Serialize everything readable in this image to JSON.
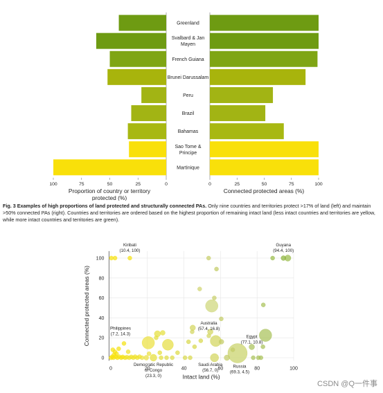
{
  "chart_data": [
    {
      "type": "bar",
      "orientation": "horizontal",
      "categories": [
        "Greenland",
        "Svalbard & Jan Mayen",
        "French Guiana",
        "Brunei Darussalam",
        "Peru",
        "Brazil",
        "Bahamas",
        "Sao Tome & Principe",
        "Martinique"
      ],
      "category_label_lines": [
        [
          "Greenland"
        ],
        [
          "Svalbard & Jan",
          "Mayen"
        ],
        [
          "French Guiana"
        ],
        [
          "Brunei Darussalam"
        ],
        [
          "Peru"
        ],
        [
          "Brazil"
        ],
        [
          "Bahamas"
        ],
        [
          "Sao Tome &",
          "Principe"
        ],
        [
          "Martinique"
        ]
      ],
      "colors": [
        "#6e9b12",
        "#6e9b12",
        "#7fa514",
        "#a8b40c",
        "#a2b414",
        "#a2b414",
        "#a8b812",
        "#f9e00a",
        "#f9e00a"
      ],
      "left": {
        "values": [
          42,
          62,
          50,
          52,
          22,
          31,
          34,
          33,
          100
        ],
        "xlabel_lines": [
          "Proportion of country or territory",
          "protected (%)"
        ],
        "xlim": [
          100,
          0
        ],
        "ticks": [
          "100",
          "75",
          "50",
          "25",
          "0"
        ],
        "tick_values": [
          100,
          75,
          50,
          25,
          0
        ]
      },
      "right": {
        "values": [
          100,
          100,
          99,
          88,
          58,
          51,
          68,
          100,
          100
        ],
        "xlabel": "Connected protected areas (%)",
        "xlim": [
          0,
          100
        ],
        "ticks": [
          "0",
          "25",
          "50",
          "75",
          "100"
        ],
        "tick_values": [
          0,
          25,
          50,
          75,
          100
        ]
      }
    },
    {
      "type": "scatter",
      "xlabel": "Intact land (%)",
      "ylabel": "Connected protected areas (%)",
      "xlim": [
        -1,
        100
      ],
      "ylim": [
        -3,
        107
      ],
      "xticks": [
        "0",
        "20",
        "40",
        "60",
        "80",
        "100"
      ],
      "xtick_values": [
        0,
        20,
        40,
        60,
        80,
        100
      ],
      "yticks": [
        "0",
        "20",
        "40",
        "60",
        "80",
        "100"
      ],
      "ytick_values": [
        0,
        20,
        40,
        60,
        80,
        100
      ],
      "grid": true,
      "points": [
        {
          "x": 10.4,
          "y": 100,
          "r": 3,
          "c": "#f4e214"
        },
        {
          "x": 0.3,
          "y": 100,
          "r": 3,
          "c": "#f7e210"
        },
        {
          "x": 2.3,
          "y": 100,
          "r": 3,
          "c": "#f7e210"
        },
        {
          "x": 94.4,
          "y": 100,
          "r": 3.5,
          "c": "#8ab33a"
        },
        {
          "x": 96.8,
          "y": 100,
          "r": 4.5,
          "c": "#9abd4a"
        },
        {
          "x": 88.5,
          "y": 100,
          "r": 3,
          "c": "#9abd4a"
        },
        {
          "x": 53.5,
          "y": 100,
          "r": 3,
          "c": "#c7cf6a"
        },
        {
          "x": 57.8,
          "y": 89,
          "r": 3,
          "c": "#c3cc66"
        },
        {
          "x": 48.6,
          "y": 69,
          "r": 3,
          "c": "#d0d470"
        },
        {
          "x": 56.6,
          "y": 60,
          "r": 3,
          "c": "#c7cf6a"
        },
        {
          "x": 55.2,
          "y": 52,
          "r": 9,
          "c": "#cfd77a"
        },
        {
          "x": 83.4,
          "y": 53,
          "r": 3,
          "c": "#a9c25a"
        },
        {
          "x": 60.4,
          "y": 39,
          "r": 3,
          "c": "#c3cc66"
        },
        {
          "x": 44.8,
          "y": 30,
          "r": 4,
          "c": "#d3d65e"
        },
        {
          "x": 44.5,
          "y": 26,
          "r": 3,
          "c": "#d3d65e"
        },
        {
          "x": 28.4,
          "y": 25,
          "r": 3.5,
          "c": "#e4df3c"
        },
        {
          "x": 25.5,
          "y": 24,
          "r": 4.5,
          "c": "#e4df3c"
        },
        {
          "x": 24.8,
          "y": 20,
          "r": 3,
          "c": "#e4df3c"
        },
        {
          "x": 57.4,
          "y": 16.8,
          "r": 8,
          "c": "#d3d65e"
        },
        {
          "x": 54.4,
          "y": 26,
          "r": 4,
          "c": "#d3d65e"
        },
        {
          "x": 53.6,
          "y": 22,
          "r": 3,
          "c": "#d3d65e"
        },
        {
          "x": 77.1,
          "y": 10.8,
          "r": 4,
          "c": "#a9c25a"
        },
        {
          "x": 7.2,
          "y": 14.3,
          "r": 3,
          "c": "#f4e214"
        },
        {
          "x": 20.5,
          "y": 15,
          "r": 9,
          "c": "#ebe040"
        },
        {
          "x": 31.2,
          "y": 13,
          "r": 8,
          "c": "#e6de42"
        },
        {
          "x": 42.5,
          "y": 16,
          "r": 3,
          "c": "#d8d84c"
        },
        {
          "x": 45.8,
          "y": 11,
          "r": 3,
          "c": "#d8d84c"
        },
        {
          "x": 49.2,
          "y": 17,
          "r": 3,
          "c": "#d8d84c"
        },
        {
          "x": 60.5,
          "y": 16,
          "r": 3.5,
          "c": "#c3cc66"
        },
        {
          "x": 66.7,
          "y": 8,
          "r": 3,
          "c": "#c3cc66"
        },
        {
          "x": 84.6,
          "y": 22.5,
          "r": 9,
          "c": "#a9c25a"
        },
        {
          "x": 83.2,
          "y": 11,
          "r": 3,
          "c": "#a9c25a"
        },
        {
          "x": 69.3,
          "y": 4.5,
          "r": 14,
          "c": "#c9d26a"
        },
        {
          "x": 56.7,
          "y": 0,
          "r": 6,
          "c": "#d3d65e"
        },
        {
          "x": 23.3,
          "y": 0,
          "r": 5,
          "c": "#e6df3c"
        },
        {
          "x": 80.7,
          "y": 0,
          "r": 3,
          "c": "#a9c25a"
        },
        {
          "x": 82.1,
          "y": 0,
          "r": 3,
          "c": "#a9c25a"
        },
        {
          "x": 77.9,
          "y": 0,
          "r": 3,
          "c": "#a9c25a"
        },
        {
          "x": 63.5,
          "y": 0,
          "r": 4,
          "c": "#c3cc66"
        },
        {
          "x": 40.6,
          "y": 0,
          "r": 3,
          "c": "#d8d84c"
        },
        {
          "x": 43.4,
          "y": 0,
          "r": 3,
          "c": "#d8d84c"
        },
        {
          "x": 33.6,
          "y": 0,
          "r": 3,
          "c": "#dedb46"
        },
        {
          "x": 30.5,
          "y": 0,
          "r": 3,
          "c": "#dedb46"
        },
        {
          "x": 27.5,
          "y": 0,
          "r": 3,
          "c": "#e4df3c"
        },
        {
          "x": 19.4,
          "y": 0,
          "r": 3.5,
          "c": "#ebe040"
        },
        {
          "x": 17.1,
          "y": 0,
          "r": 3,
          "c": "#ebe040"
        },
        {
          "x": 14.5,
          "y": 0,
          "r": 3,
          "c": "#f0e22c"
        },
        {
          "x": 12.3,
          "y": 0,
          "r": 3,
          "c": "#f0e22c"
        },
        {
          "x": 10.1,
          "y": 0,
          "r": 3,
          "c": "#f0e22c"
        },
        {
          "x": 7.8,
          "y": 0,
          "r": 3,
          "c": "#f4e214"
        },
        {
          "x": 5.7,
          "y": 0,
          "r": 3,
          "c": "#f4e214"
        },
        {
          "x": 3.6,
          "y": 0,
          "r": 3,
          "c": "#f7e210"
        },
        {
          "x": 1.4,
          "y": 0,
          "r": 3,
          "c": "#f7e210"
        },
        {
          "x": 0.1,
          "y": 0,
          "r": 3,
          "c": "#f7e210"
        },
        {
          "x": 0.8,
          "y": 1,
          "r": 3,
          "c": "#f7e210"
        },
        {
          "x": 2.6,
          "y": 1,
          "r": 3,
          "c": "#f7e210"
        },
        {
          "x": 4.6,
          "y": 1,
          "r": 3,
          "c": "#f4e214"
        },
        {
          "x": 6.5,
          "y": 0.8,
          "r": 3,
          "c": "#f4e214"
        },
        {
          "x": 8.8,
          "y": 0.5,
          "r": 3,
          "c": "#f0e22c"
        },
        {
          "x": 11.2,
          "y": 0.8,
          "r": 3,
          "c": "#f0e22c"
        },
        {
          "x": 15.7,
          "y": 1,
          "r": 3,
          "c": "#f0e22c"
        },
        {
          "x": 13.3,
          "y": 1,
          "r": 3,
          "c": "#f0e22c"
        },
        {
          "x": 1.8,
          "y": 3,
          "r": 3,
          "c": "#f7e210"
        },
        {
          "x": 3.1,
          "y": 4,
          "r": 3,
          "c": "#f7e210"
        },
        {
          "x": 2.2,
          "y": 6,
          "r": 3,
          "c": "#f7e210"
        },
        {
          "x": 1.1,
          "y": 8,
          "r": 3,
          "c": "#f7e210"
        },
        {
          "x": 4.3,
          "y": 9,
          "r": 3,
          "c": "#f4e214"
        },
        {
          "x": 20.9,
          "y": 4,
          "r": 3,
          "c": "#ebe040"
        },
        {
          "x": 26.8,
          "y": 5,
          "r": 3,
          "c": "#e4df3c"
        },
        {
          "x": 36.5,
          "y": 5,
          "r": 3,
          "c": "#dedb46"
        },
        {
          "x": 9.5,
          "y": 6,
          "r": 3,
          "c": "#f0e22c"
        }
      ],
      "annotations": [
        {
          "lines": [
            "Kiribati",
            "(10.4, 100)"
          ],
          "x": 10.4,
          "y": 100
        },
        {
          "lines": [
            "Guyana",
            "(94.4, 100)"
          ],
          "x": 94.4,
          "y": 100
        },
        {
          "lines": [
            "Philippines",
            "(7.2, 14.3)"
          ],
          "x": 7.2,
          "y": 14.3
        },
        {
          "lines": [
            "Australia",
            "(57.4, 16.8)"
          ],
          "x": 57.4,
          "y": 16.8
        },
        {
          "lines": [
            "Egypt",
            "(77.1, 10.8)"
          ],
          "x": 77.1,
          "y": 10.8
        },
        {
          "lines": [
            "Democratic Republic",
            "of Congo",
            "(23.3, 0)"
          ],
          "x": 23.3,
          "y": 0
        },
        {
          "lines": [
            "Saudi Arabia",
            "(56.7, 0)"
          ],
          "x": 56.7,
          "y": 0
        },
        {
          "lines": [
            "Russia",
            "(69.3, 4.5)"
          ],
          "x": 69.3,
          "y": 4.5
        }
      ]
    }
  ],
  "caption": {
    "bold": "Fig. 3 Examples of high proportions of land protected and structurally connected PAs.",
    "text": " Only nine countries and territories protect >17% of land (left) and maintain >50% connected PAs (right). Countries and territories are ordered based on the highest proportion of remaining intact land (less intact countries and territories are yellow, while more intact countries and territories are green)."
  },
  "watermark": "CSDN @Q一件事"
}
